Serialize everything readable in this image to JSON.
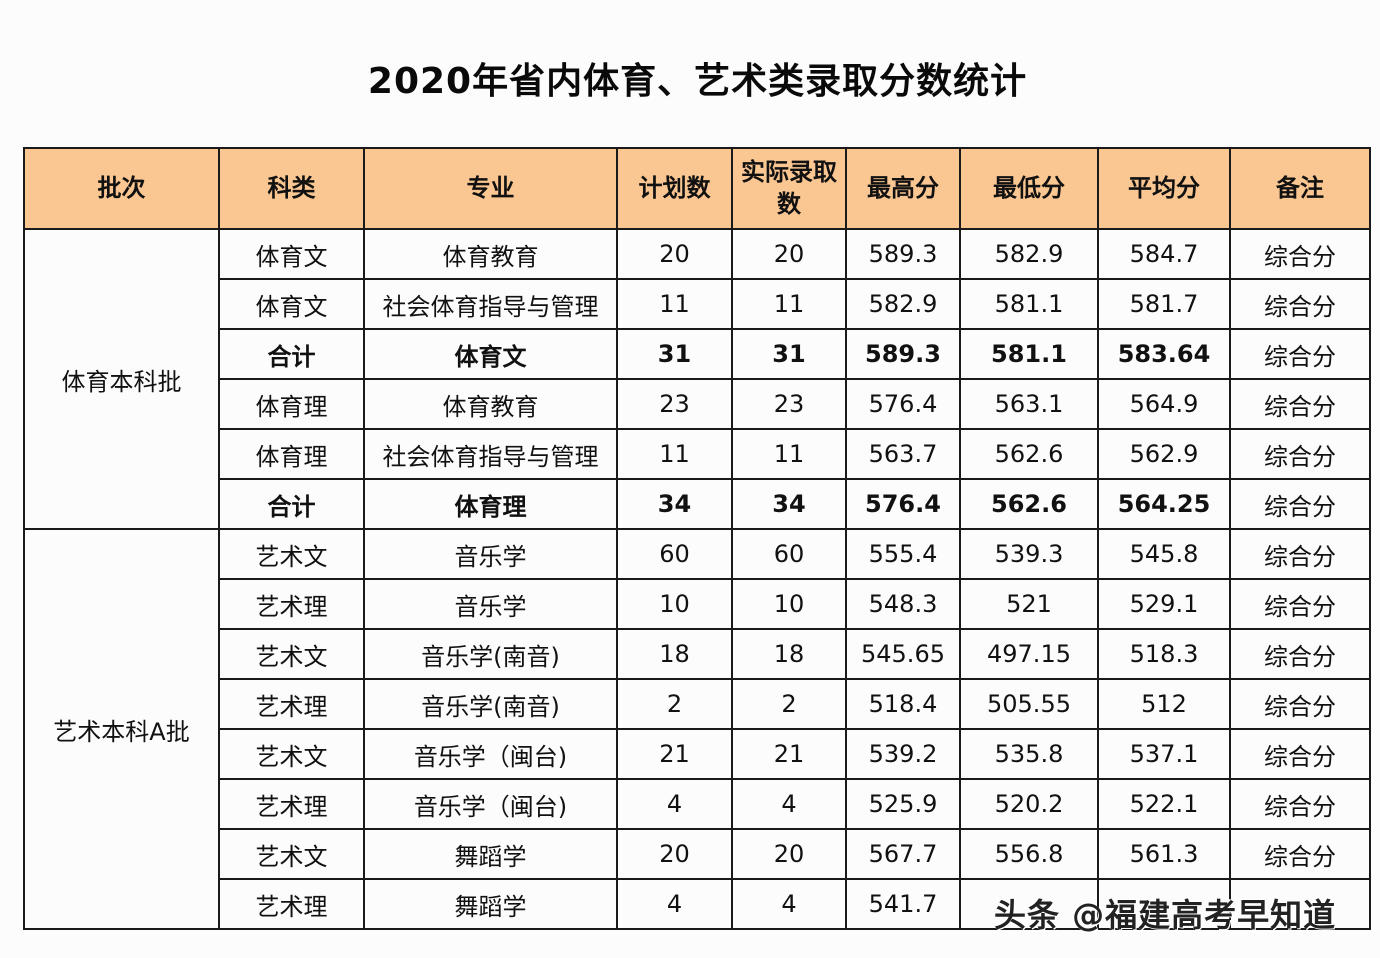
{
  "title": "2020年省内体育、艺术类录取分数统计",
  "table": {
    "headers": [
      "批次",
      "科类",
      "专业",
      "计划数",
      "实际录取数",
      "最高分",
      "最低分",
      "平均分",
      "备注"
    ],
    "header_color": "#fac692",
    "groups": [
      {
        "batch": "体育本科批",
        "rows": [
          {
            "category": "体育文",
            "major": "体育教育",
            "plan": "20",
            "admitted": "20",
            "max": "589.3",
            "min": "582.9",
            "avg": "584.7",
            "remark": "综合分",
            "subtotal": false
          },
          {
            "category": "体育文",
            "major": "社会体育指导与管理",
            "plan": "11",
            "admitted": "11",
            "max": "582.9",
            "min": "581.1",
            "avg": "581.7",
            "remark": "综合分",
            "subtotal": false
          },
          {
            "category": "合计",
            "major": "体育文",
            "plan": "31",
            "admitted": "31",
            "max": "589.3",
            "min": "581.1",
            "avg": "583.64",
            "remark": "综合分",
            "subtotal": true
          },
          {
            "category": "体育理",
            "major": "体育教育",
            "plan": "23",
            "admitted": "23",
            "max": "576.4",
            "min": "563.1",
            "avg": "564.9",
            "remark": "综合分",
            "subtotal": false
          },
          {
            "category": "体育理",
            "major": "社会体育指导与管理",
            "plan": "11",
            "admitted": "11",
            "max": "563.7",
            "min": "562.6",
            "avg": "562.9",
            "remark": "综合分",
            "subtotal": false
          },
          {
            "category": "合计",
            "major": "体育理",
            "plan": "34",
            "admitted": "34",
            "max": "576.4",
            "min": "562.6",
            "avg": "564.25",
            "remark": "综合分",
            "subtotal": true
          }
        ]
      },
      {
        "batch": "艺术本科A批",
        "rows": [
          {
            "category": "艺术文",
            "major": "音乐学",
            "plan": "60",
            "admitted": "60",
            "max": "555.4",
            "min": "539.3",
            "avg": "545.8",
            "remark": "综合分",
            "subtotal": false
          },
          {
            "category": "艺术理",
            "major": "音乐学",
            "plan": "10",
            "admitted": "10",
            "max": "548.3",
            "min": "521",
            "avg": "529.1",
            "remark": "综合分",
            "subtotal": false
          },
          {
            "category": "艺术文",
            "major": "音乐学(南音)",
            "plan": "18",
            "admitted": "18",
            "max": "545.65",
            "min": "497.15",
            "avg": "518.3",
            "remark": "综合分",
            "subtotal": false
          },
          {
            "category": "艺术理",
            "major": "音乐学(南音)",
            "plan": "2",
            "admitted": "2",
            "max": "518.4",
            "min": "505.55",
            "avg": "512",
            "remark": "综合分",
            "subtotal": false
          },
          {
            "category": "艺术文",
            "major": "音乐学（闽台)",
            "plan": "21",
            "admitted": "21",
            "max": "539.2",
            "min": "535.8",
            "avg": "537.1",
            "remark": "综合分",
            "subtotal": false
          },
          {
            "category": "艺术理",
            "major": "音乐学（闽台)",
            "plan": "4",
            "admitted": "4",
            "max": "525.9",
            "min": "520.2",
            "avg": "522.1",
            "remark": "综合分",
            "subtotal": false
          },
          {
            "category": "艺术文",
            "major": "舞蹈学",
            "plan": "20",
            "admitted": "20",
            "max": "567.7",
            "min": "556.8",
            "avg": "561.3",
            "remark": "综合分",
            "subtotal": false
          },
          {
            "category": "艺术理",
            "major": "舞蹈学",
            "plan": "4",
            "admitted": "4",
            "max": "541.7",
            "min": "",
            "avg": "",
            "remark": "",
            "subtotal": false
          }
        ]
      }
    ]
  },
  "watermark": "头条 @福建高考早知道"
}
